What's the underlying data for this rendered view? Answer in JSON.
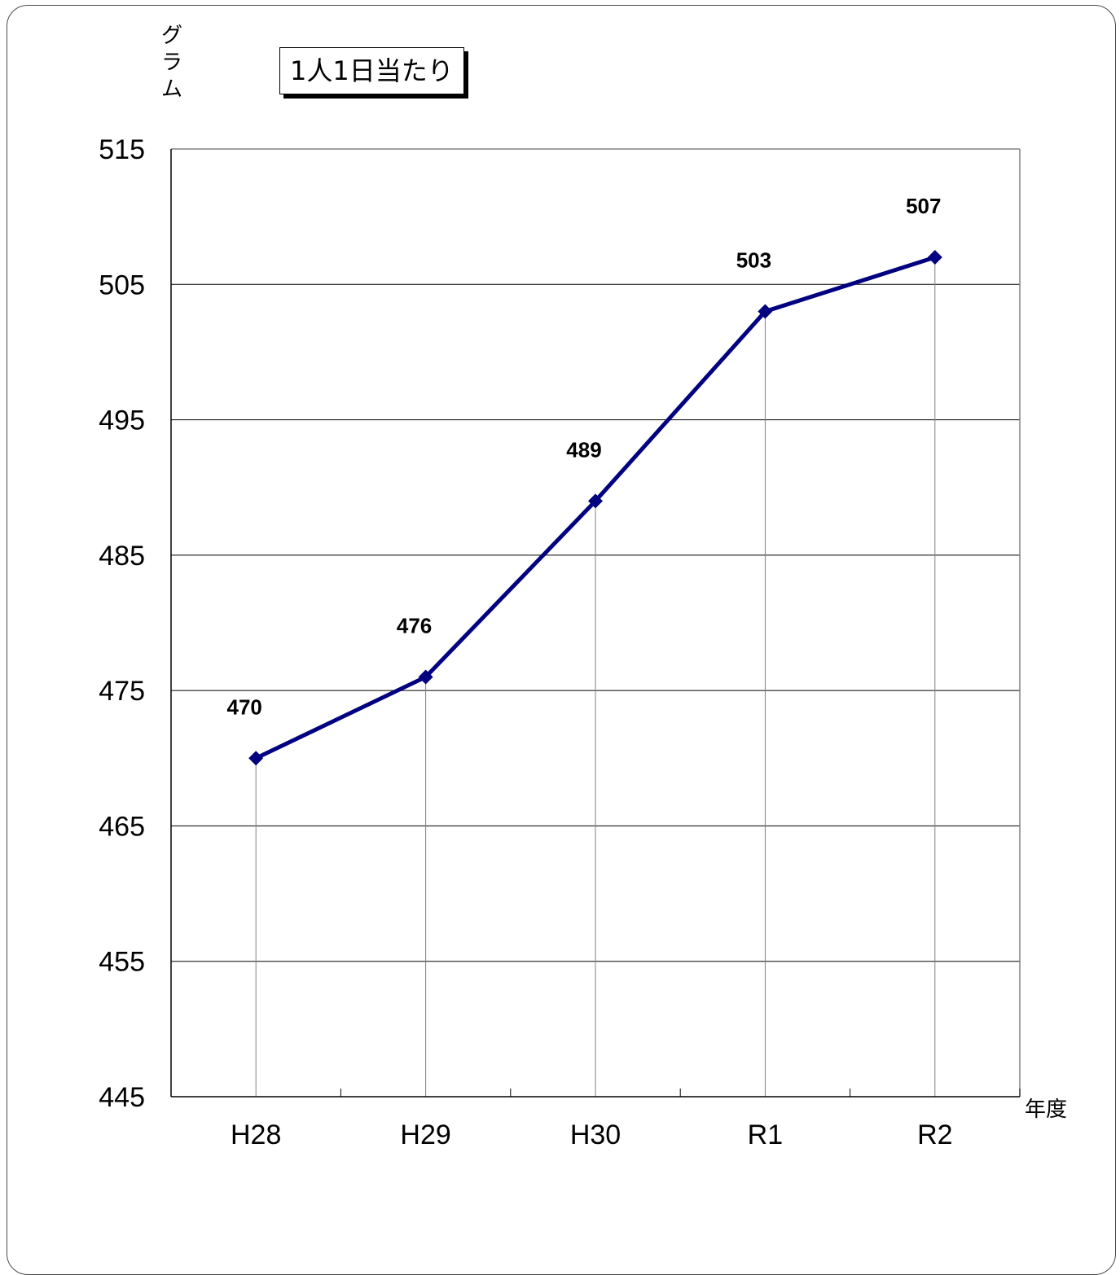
{
  "chart_data": {
    "type": "line",
    "title": "",
    "subtitle": "1人1日当たり",
    "ylabel": "グラム",
    "xlabel": "年度",
    "categories": [
      "H28",
      "H29",
      "H30",
      "R1",
      "R2"
    ],
    "series": [
      {
        "values": [
          470,
          476,
          489,
          503,
          507
        ],
        "color": "#000080",
        "marker": "diamond"
      }
    ],
    "ylim": [
      445,
      515
    ],
    "yticks": [
      445,
      455,
      465,
      475,
      485,
      495,
      505,
      515
    ],
    "grid": true,
    "legend": "none"
  }
}
